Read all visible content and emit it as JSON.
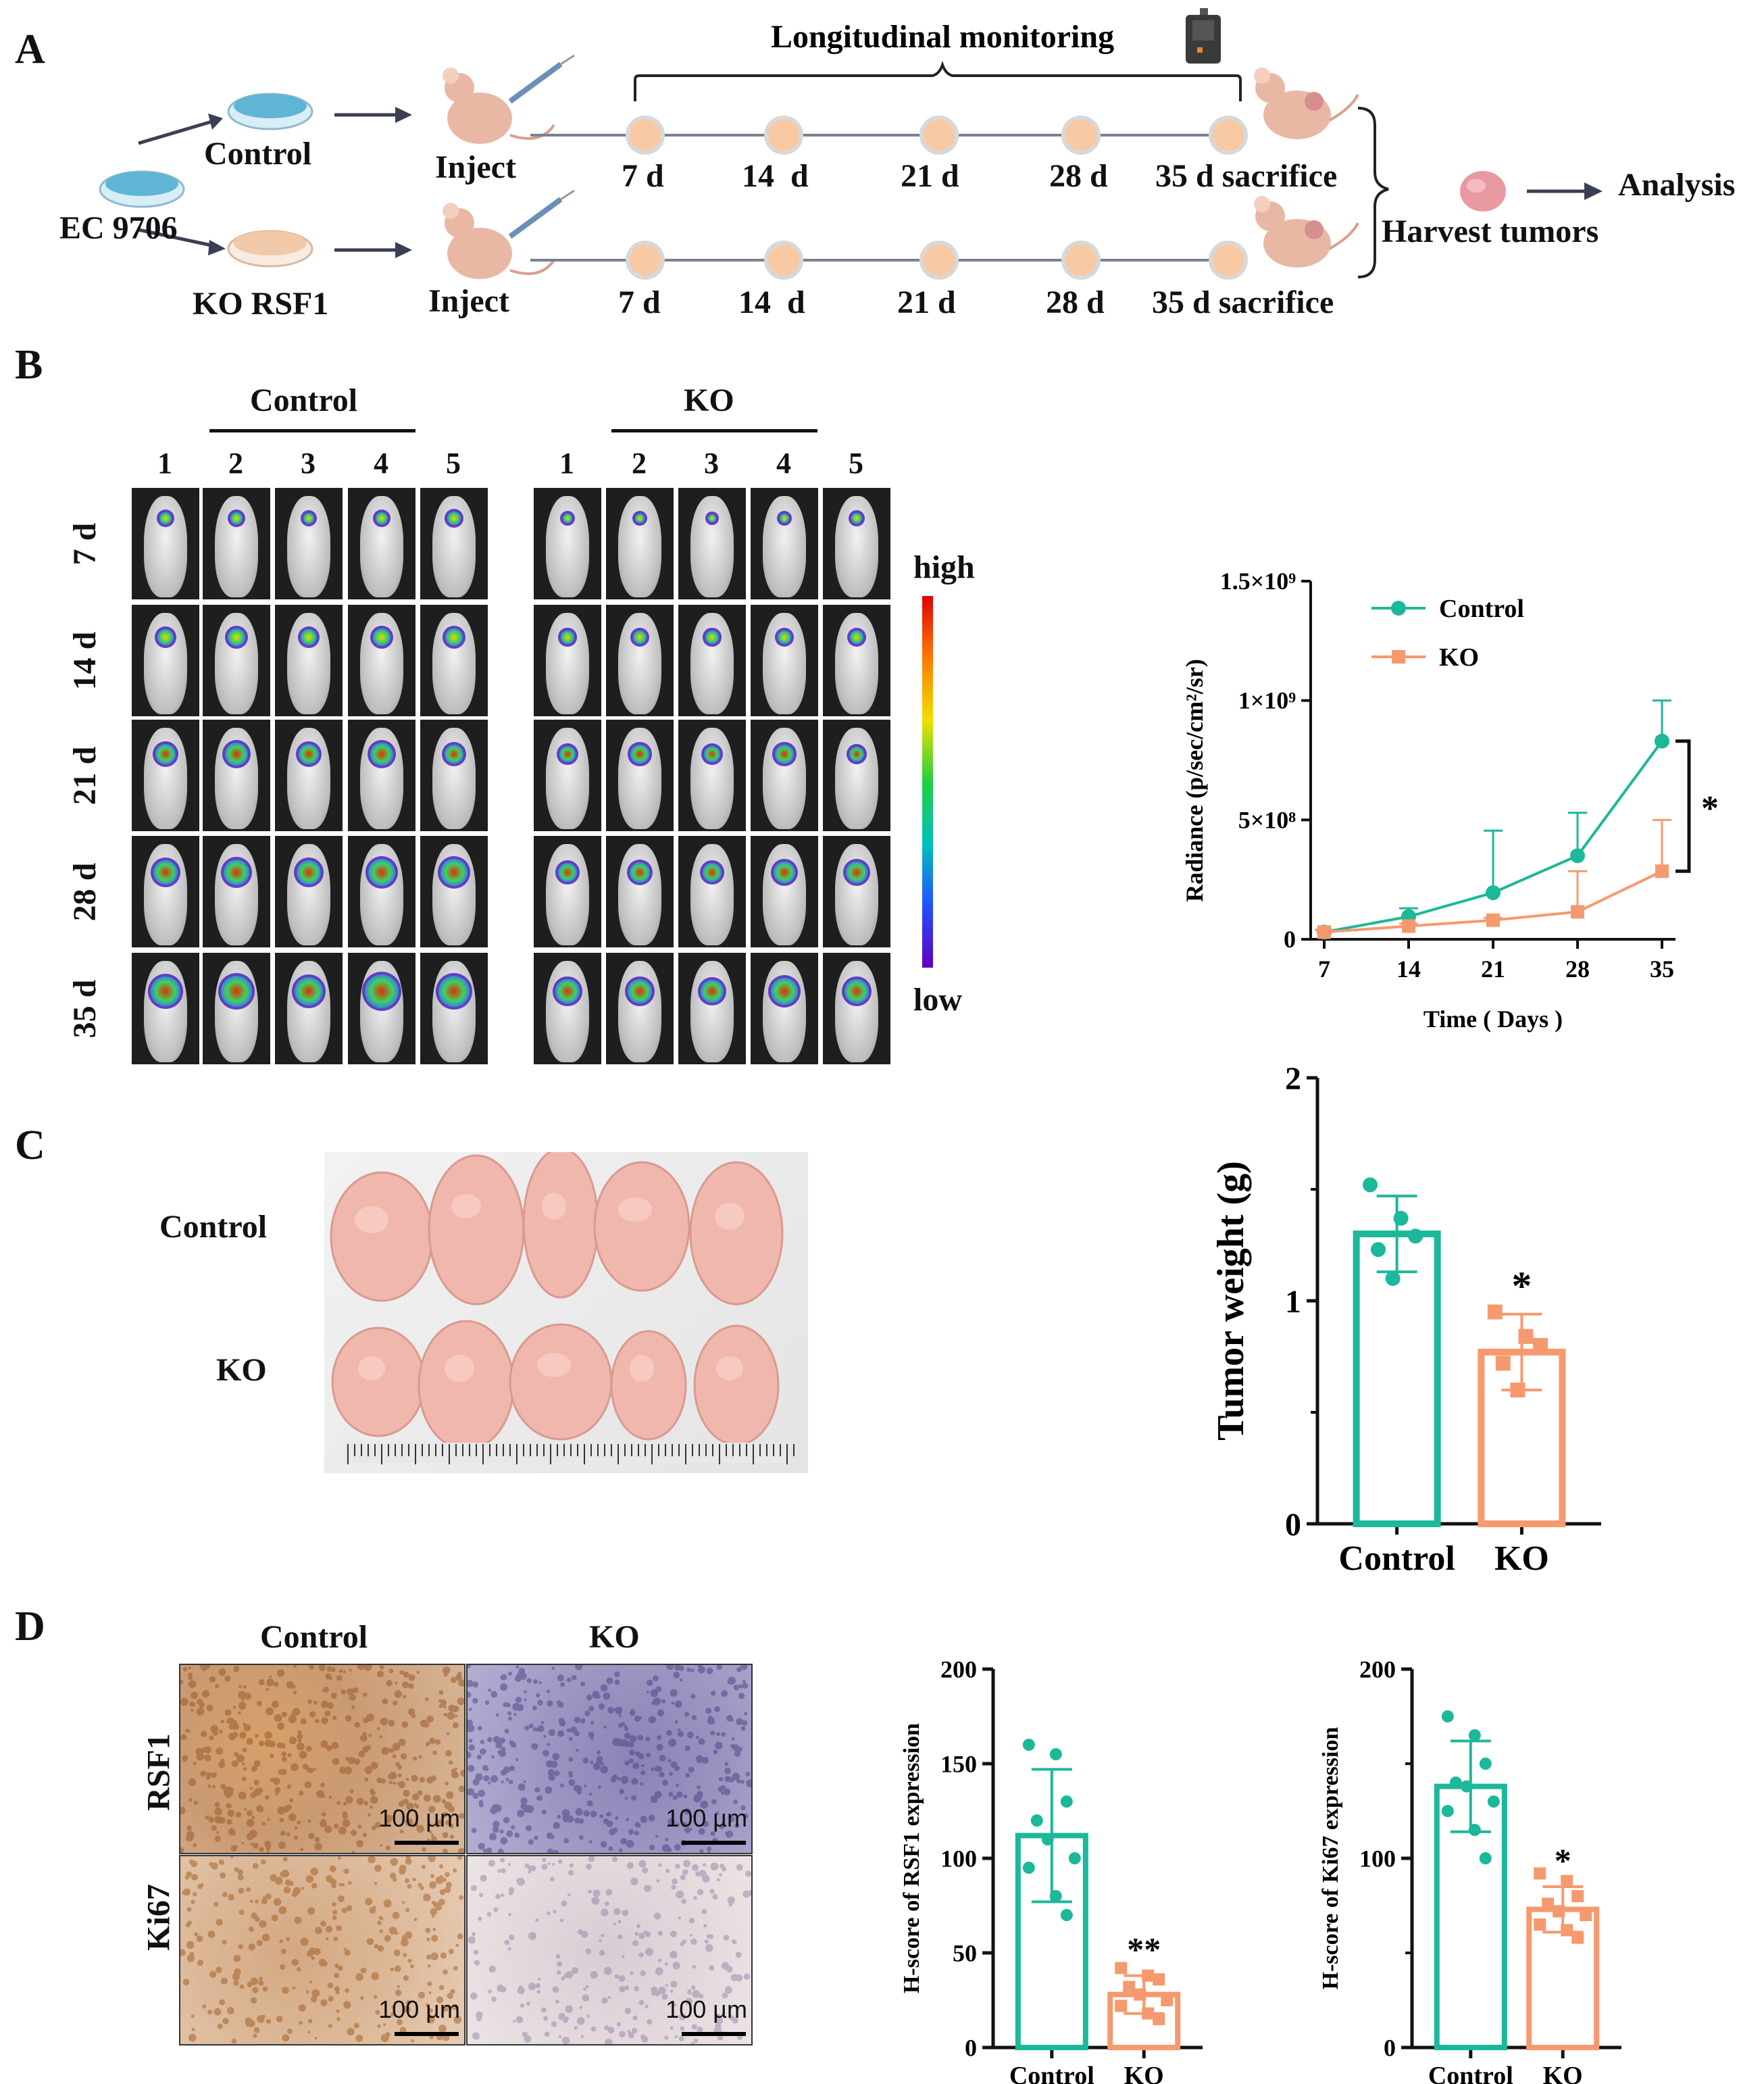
{
  "panels": {
    "a": "A",
    "b": "B",
    "c": "C",
    "d": "D"
  },
  "schematic": {
    "title": "Longitudinal monitoring",
    "cell_line": "EC 9706",
    "groups": [
      "Control",
      "KO RSF1"
    ],
    "inject": "Inject",
    "timepoints": [
      "7 d",
      "14  d",
      "21 d",
      "28 d",
      "35 d sacrifice"
    ],
    "harvest": "Harvest tumors",
    "analysis": "Analysis"
  },
  "imaging": {
    "group_control": "Control",
    "group_ko": "KO",
    "mice": [
      "1",
      "2",
      "3",
      "4",
      "5"
    ],
    "days": [
      "7 d",
      "14 d",
      "21 d",
      "28 d",
      "35 d"
    ],
    "scale_high": "high",
    "scale_low": "low"
  },
  "photo": {
    "control": "Control",
    "ko": "KO"
  },
  "ihc": {
    "cols": [
      "Control",
      "KO"
    ],
    "rows": [
      "RSF1",
      "Ki67"
    ],
    "scalebar": "100 µm"
  },
  "chart_data": [
    {
      "type": "line",
      "title": "",
      "xlabel": "Time ( Days )",
      "ylabel": "Radiance (p/sec/cm²/sr)",
      "x": [
        7,
        14,
        21,
        28,
        35
      ],
      "xticks": [
        "7",
        "14",
        "21",
        "28",
        "35"
      ],
      "yticks": [
        "0",
        "5×10⁸",
        "1×10⁹",
        "1.5×10⁹"
      ],
      "ylim": [
        0,
        1500000000
      ],
      "series": [
        {
          "name": "Control",
          "color": "#1cb89a",
          "values": [
            30000000,
            95000000,
            195000000,
            350000000,
            830000000
          ],
          "err": [
            10000000,
            35000000,
            260000000,
            180000000,
            170000000
          ]
        },
        {
          "name": "KO",
          "color": "#f59a6e",
          "values": [
            30000000,
            55000000,
            80000000,
            115000000,
            285000000
          ],
          "err": [
            10000000,
            10000000,
            10000000,
            170000000,
            215000000
          ]
        }
      ],
      "significance": "*"
    },
    {
      "type": "bar",
      "ylabel": "Tumor weight (g)",
      "categories": [
        "Control",
        "KO"
      ],
      "values": [
        1.3,
        0.77
      ],
      "sd": [
        0.17,
        0.17
      ],
      "points": [
        [
          1.52,
          1.37,
          1.29,
          1.23,
          1.1
        ],
        [
          0.95,
          0.84,
          0.8,
          0.72,
          0.6
        ]
      ],
      "ylim": [
        0,
        2
      ],
      "yticks": [
        "0",
        "1",
        "2"
      ],
      "colors": [
        "#1cb89a",
        "#f59a6e"
      ],
      "significance": "*"
    },
    {
      "type": "bar",
      "ylabel": "H-score of RSF1 expression",
      "categories": [
        "Control",
        "KO"
      ],
      "values": [
        112,
        28
      ],
      "sd": [
        35,
        10
      ],
      "points": [
        [
          160,
          155,
          130,
          120,
          110,
          100,
          95,
          80,
          70
        ],
        [
          42,
          38,
          36,
          32,
          28,
          25,
          22,
          18,
          15
        ]
      ],
      "ylim": [
        0,
        200
      ],
      "yticks": [
        "0",
        "50",
        "100",
        "150",
        "200"
      ],
      "colors": [
        "#1cb89a",
        "#f59a6e"
      ],
      "significance": "**"
    },
    {
      "type": "bar",
      "ylabel": "H-score of Ki67 expression",
      "categories": [
        "Control",
        "KO"
      ],
      "values": [
        138,
        73
      ],
      "sd": [
        24,
        12
      ],
      "points": [
        [
          175,
          165,
          150,
          140,
          138,
          130,
          125,
          115,
          100
        ],
        [
          92,
          88,
          80,
          76,
          72,
          70,
          65,
          62,
          58
        ]
      ],
      "ylim": [
        0,
        200
      ],
      "yticks": [
        "0",
        "100",
        "200"
      ],
      "colors": [
        "#1cb89a",
        "#f59a6e"
      ],
      "significance": "*"
    }
  ]
}
